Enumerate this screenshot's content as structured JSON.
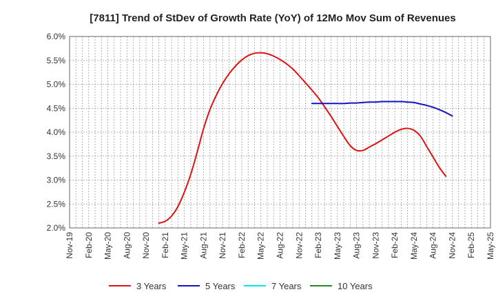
{
  "chart_data": {
    "type": "line",
    "title": "[7811]  Trend of StDev of Growth Rate (YoY) of 12Mo Mov Sum of Revenues",
    "xlabel": "",
    "ylabel": "",
    "ylim": [
      2.0,
      6.0
    ],
    "ytick_values": [
      2.0,
      2.5,
      3.0,
      3.5,
      4.0,
      4.5,
      5.0,
      5.5,
      6.0
    ],
    "ytick_labels": [
      "2.0%",
      "2.5%",
      "3.0%",
      "3.5%",
      "4.0%",
      "4.5%",
      "5.0%",
      "5.5%",
      "6.0%"
    ],
    "x_start": "Nov-19",
    "x_end": "May-25",
    "xtick_labels": [
      "Nov-19",
      "Feb-20",
      "May-20",
      "Aug-20",
      "Nov-20",
      "Feb-21",
      "May-21",
      "Aug-21",
      "Nov-21",
      "Feb-22",
      "May-22",
      "Aug-22",
      "Nov-22",
      "Feb-23",
      "May-23",
      "Aug-23",
      "Nov-23",
      "Feb-24",
      "May-24",
      "Aug-24",
      "Nov-24",
      "Feb-25",
      "May-25"
    ],
    "grid": true,
    "legend_position": "bottom",
    "series": [
      {
        "name": "3 Years",
        "color": "#dd1111",
        "x": [
          "Jan-21",
          "Feb-21",
          "Mar-21",
          "Apr-21",
          "May-21",
          "Jun-21",
          "Jul-21",
          "Aug-21",
          "Sep-21",
          "Oct-21",
          "Nov-21",
          "Dec-21",
          "Jan-22",
          "Feb-22",
          "Mar-22",
          "Apr-22",
          "May-22",
          "Jun-22",
          "Jul-22",
          "Aug-22",
          "Sep-22",
          "Oct-22",
          "Nov-22",
          "Dec-22",
          "Jan-23",
          "Feb-23",
          "Mar-23",
          "Apr-23",
          "May-23",
          "Jun-23",
          "Jul-23",
          "Aug-23",
          "Sep-23",
          "Oct-23",
          "Nov-23",
          "Dec-23",
          "Jan-24",
          "Feb-24",
          "Mar-24",
          "Apr-24",
          "May-24",
          "Jun-24",
          "Jul-24",
          "Aug-24",
          "Sep-24",
          "Oct-24",
          "Nov-24"
        ],
        "values": [
          2.1,
          2.14,
          2.25,
          2.45,
          2.75,
          3.12,
          3.58,
          4.07,
          4.47,
          4.77,
          5.02,
          5.22,
          5.38,
          5.51,
          5.6,
          5.65,
          5.66,
          5.64,
          5.59,
          5.52,
          5.43,
          5.32,
          5.18,
          5.03,
          4.88,
          4.72,
          4.53,
          4.33,
          4.12,
          3.91,
          3.72,
          3.62,
          3.62,
          3.69,
          3.76,
          3.84,
          3.92,
          4.0,
          4.06,
          4.08,
          4.04,
          3.92,
          3.7,
          3.48,
          3.26,
          3.08,
          null
        ],
        "values_note": "monthly; last visible point at Nov-24"
      },
      {
        "name": "5 Years",
        "color": "#1111cc",
        "x": [
          "Jan-23",
          "Feb-23",
          "Mar-23",
          "Apr-23",
          "May-23",
          "Jun-23",
          "Jul-23",
          "Aug-23",
          "Sep-23",
          "Oct-23",
          "Nov-23",
          "Dec-23",
          "Jan-24",
          "Feb-24",
          "Mar-24",
          "Apr-24",
          "May-24",
          "Jun-24",
          "Jul-24",
          "Aug-24",
          "Sep-24",
          "Oct-24",
          "Nov-24"
        ],
        "values": [
          4.6,
          4.6,
          4.6,
          4.6,
          4.6,
          4.6,
          4.61,
          4.61,
          4.62,
          4.63,
          4.63,
          4.64,
          4.64,
          4.64,
          4.64,
          4.63,
          4.62,
          4.59,
          4.56,
          4.52,
          4.47,
          4.41,
          4.34
        ]
      },
      {
        "name": "7 Years",
        "color": "#00e5ee",
        "x": [],
        "values": []
      },
      {
        "name": "10 Years",
        "color": "#228822",
        "x": [],
        "values": []
      }
    ]
  }
}
